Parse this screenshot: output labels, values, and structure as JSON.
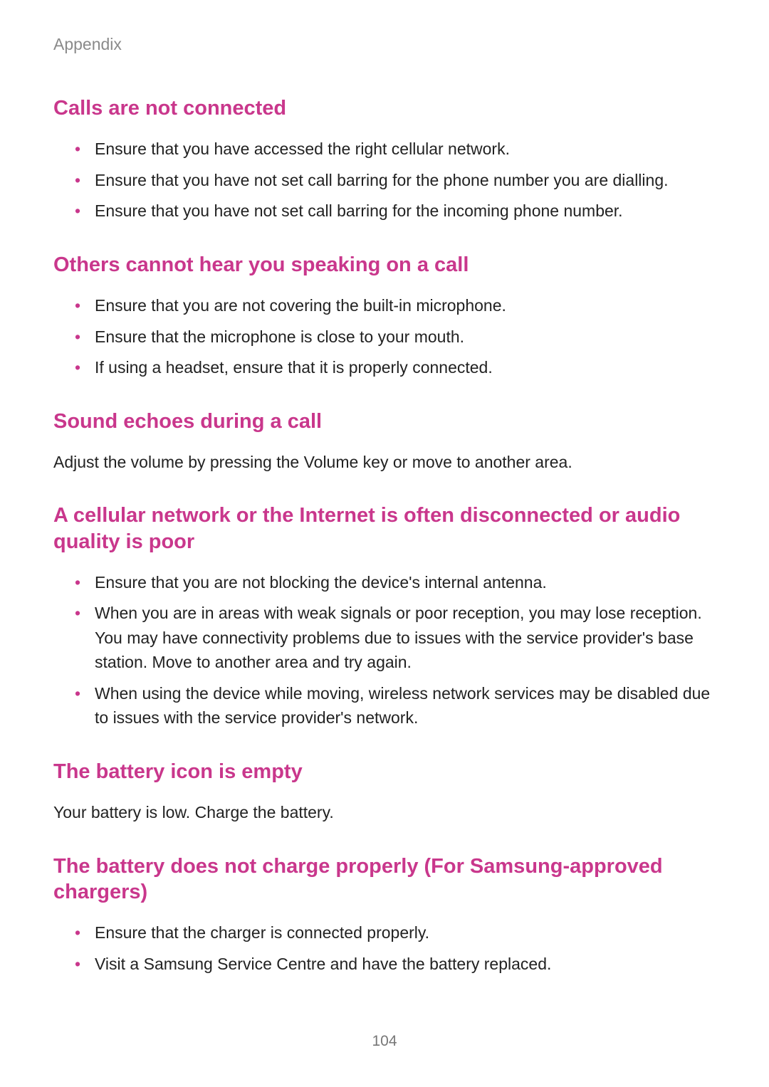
{
  "header": {
    "title": "Appendix"
  },
  "sections": {
    "s1": {
      "heading": "Calls are not connected",
      "items": [
        "Ensure that you have accessed the right cellular network.",
        "Ensure that you have not set call barring for the phone number you are dialling.",
        "Ensure that you have not set call barring for the incoming phone number."
      ]
    },
    "s2": {
      "heading": "Others cannot hear you speaking on a call",
      "items": [
        "Ensure that you are not covering the built-in microphone.",
        "Ensure that the microphone is close to your mouth.",
        "If using a headset, ensure that it is properly connected."
      ]
    },
    "s3": {
      "heading": "Sound echoes during a call",
      "body": "Adjust the volume by pressing the Volume key or move to another area."
    },
    "s4": {
      "heading": "A cellular network or the Internet is often disconnected or audio quality is poor",
      "items": [
        "Ensure that you are not blocking the device's internal antenna.",
        "When you are in areas with weak signals or poor reception, you may lose reception. You may have connectivity problems due to issues with the service provider's base station. Move to another area and try again.",
        "When using the device while moving, wireless network services may be disabled due to issues with the service provider's network."
      ]
    },
    "s5": {
      "heading": "The battery icon is empty",
      "body": "Your battery is low. Charge the battery."
    },
    "s6": {
      "heading": "The battery does not charge properly (For Samsung-approved chargers)",
      "items": [
        "Ensure that the charger is connected properly.",
        "Visit a Samsung Service Centre and have the battery replaced."
      ]
    }
  },
  "page_number": "104",
  "colors": {
    "heading": "#c9378c",
    "text": "#222222",
    "muted": "#8a8a8a",
    "background": "#ffffff"
  },
  "typography": {
    "header_fontsize": 23,
    "heading_fontsize": 29,
    "body_fontsize": 23,
    "page_number_fontsize": 21
  }
}
